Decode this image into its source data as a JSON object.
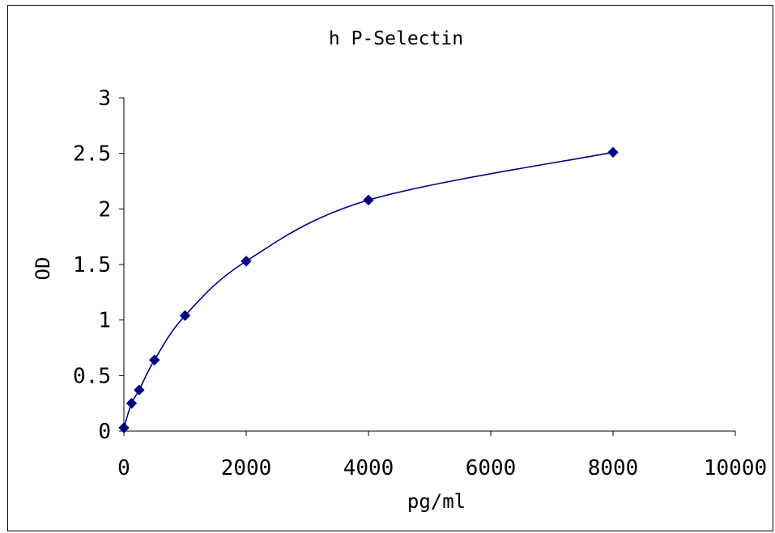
{
  "chart_data": {
    "type": "scatter",
    "title": "h P-Selectin",
    "xlabel": "pg/ml",
    "ylabel": "OD",
    "xlim": [
      0,
      10000
    ],
    "ylim": [
      0,
      3
    ],
    "xticks": [
      0,
      2000,
      4000,
      6000,
      8000,
      10000
    ],
    "xtick_labels": [
      "0",
      "2000",
      "4000",
      "6000",
      "8000",
      "10000"
    ],
    "yticks": [
      0,
      0.5,
      1,
      1.5,
      2,
      2.5,
      3
    ],
    "ytick_labels": [
      "0",
      "0.5",
      "1",
      "1.5",
      "2",
      "2.5",
      "3"
    ],
    "grid": false,
    "legend": "none",
    "trendline": "smooth",
    "series": [
      {
        "x": [
          0,
          125,
          250,
          500,
          1000,
          2000,
          4000,
          8000
        ],
        "y": [
          0.03,
          0.25,
          0.37,
          0.64,
          1.04,
          1.53,
          2.08,
          2.51
        ],
        "color": "#000080",
        "marker": "diamond"
      }
    ]
  }
}
